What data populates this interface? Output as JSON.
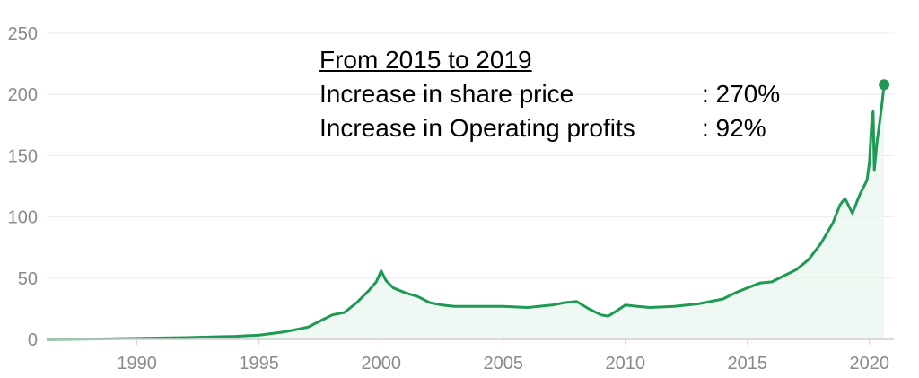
{
  "chart_data": {
    "type": "area",
    "title": "",
    "xlabel": "",
    "ylabel": "",
    "xlim": [
      1986.3,
      2021
    ],
    "ylim": [
      0,
      250
    ],
    "grid": true,
    "legend": "none",
    "line_color": "#1e9a55",
    "fill_color": "#e8f5ec",
    "x_ticks": [
      1990,
      1995,
      2000,
      2005,
      2010,
      2015,
      2020
    ],
    "x_tick_labels": [
      "1990",
      "1995",
      "2000",
      "2005",
      "2010",
      "2015",
      "2020"
    ],
    "y_ticks": [
      0,
      50,
      100,
      150,
      200,
      250
    ],
    "y_tick_labels": [
      "0",
      "50",
      "100",
      "150",
      "200",
      "250"
    ],
    "series": [
      {
        "values_x": [
          1986.3,
          1988,
          1990,
          1992,
          1994,
          1995,
          1996,
          1997,
          1997.5,
          1998,
          1998.5,
          1999,
          1999.5,
          1999.8,
          2000,
          2000.2,
          2000.5,
          2001,
          2001.5,
          2002,
          2002.5,
          2003,
          2004,
          2005,
          2006,
          2007,
          2007.5,
          2008,
          2008.5,
          2009,
          2009.3,
          2009.7,
          2010,
          2010.5,
          2011,
          2012,
          2013,
          2014,
          2014.5,
          2015,
          2015.5,
          2016,
          2016.5,
          2017,
          2017.5,
          2018,
          2018.5,
          2018.8,
          2019,
          2019.3,
          2019.6,
          2019.9,
          2020.0,
          2020.1,
          2020.15,
          2020.2,
          2020.3,
          2020.5,
          2020.6
        ],
        "values_y": [
          0,
          0.3,
          0.8,
          1.5,
          2.5,
          3.5,
          6,
          10,
          15,
          20,
          22,
          30,
          40,
          47,
          56,
          48,
          42,
          38,
          35,
          30,
          28,
          27,
          27,
          27,
          26,
          28,
          30,
          31,
          25,
          20,
          19,
          24,
          28,
          27,
          26,
          27,
          29,
          33,
          38,
          42,
          46,
          47,
          52,
          57,
          65,
          78,
          95,
          110,
          115,
          103,
          118,
          130,
          145,
          180,
          186,
          138,
          160,
          190,
          208
        ]
      }
    ],
    "end_marker": {
      "x": 2020.6,
      "y": 208
    }
  },
  "annotation": {
    "heading": "From 2015 to 2019",
    "rows": [
      {
        "label": "Increase in share price",
        "value": ": 270%"
      },
      {
        "label": "Increase in Operating profits",
        "value": ": 92%"
      }
    ]
  }
}
